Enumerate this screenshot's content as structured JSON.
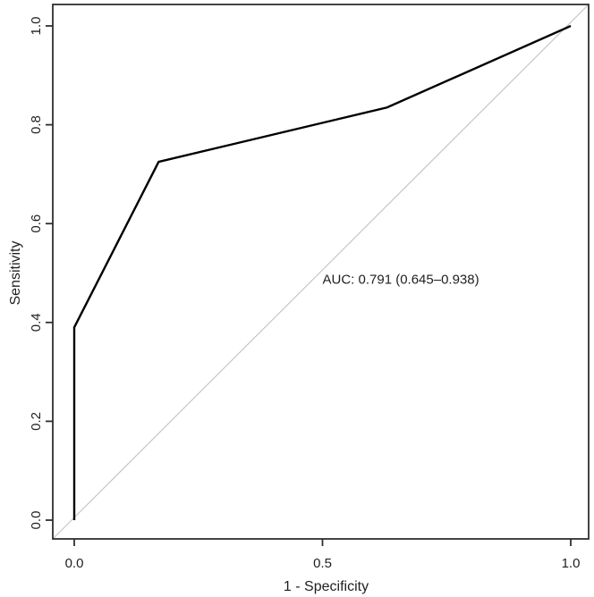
{
  "figure": {
    "background": "#ffffff"
  },
  "chart_data": {
    "type": "line",
    "subtype": "roc-curve",
    "title": "",
    "xlabel": "1 - Specificity",
    "ylabel": "Sensitivity",
    "xlim": [
      0,
      1
    ],
    "ylim": [
      0,
      1
    ],
    "grid": false,
    "legend": "none",
    "x_ticks": {
      "values": [
        0,
        0.5,
        1
      ],
      "labels": [
        "0.0",
        "0.5",
        "1.0"
      ]
    },
    "y_ticks": {
      "values": [
        0,
        0.2,
        0.4,
        0.6,
        0.8,
        1
      ],
      "labels": [
        "0.0",
        "0.2",
        "0.4",
        "0.6",
        "0.8",
        "1.0"
      ]
    },
    "series": [
      {
        "name": "ROC curve",
        "points": [
          [
            0,
            0
          ],
          [
            0,
            0.39
          ],
          [
            0.17,
            0.725
          ],
          [
            0.63,
            0.835
          ],
          [
            1,
            1
          ]
        ],
        "color": "#000000",
        "width": 2.4
      }
    ],
    "reference_line": {
      "name": "chance diagonal",
      "from": [
        0,
        0
      ],
      "to": [
        1,
        1
      ],
      "color": "#c6c6c6",
      "width": 1.2
    },
    "annotation": {
      "text": "AUC: 0.791 (0.645–0.938)",
      "x": 0.5,
      "y": 0.487,
      "anchor": "start"
    },
    "auc": {
      "value": 0.791,
      "ci_low": 0.645,
      "ci_high": 0.938
    },
    "axis_color": "#2f2f2f",
    "text_color": "#1f1f1f"
  }
}
